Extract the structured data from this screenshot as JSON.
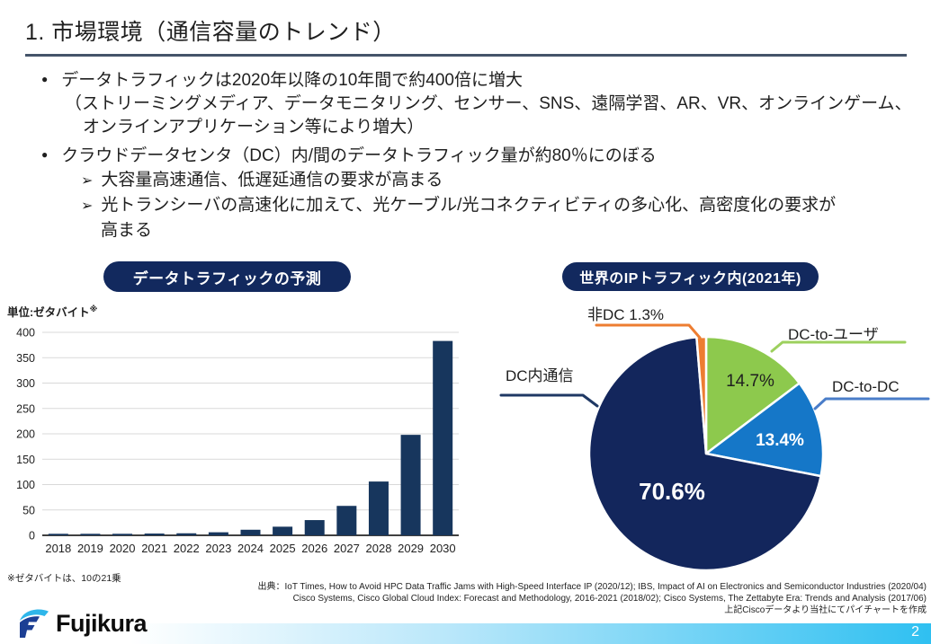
{
  "slide": {
    "title": "1. 市場環境（通信容量のトレンド）",
    "page_number": "2"
  },
  "bullets": {
    "marker_dot": "●",
    "marker_arrow": "➢",
    "rows": [
      {
        "text": "データトラフィックは2020年以降の10年間で約400倍に増大"
      },
      {
        "text": "（ストリーミングメディア、データモニタリング、センサー、SNS、遠隔学習、AR、VR、オンラインゲーム、"
      },
      {
        "text": "オンラインアプリケーション等により増大）"
      },
      {
        "text": "クラウドデータセンタ（DC）内/間のデータトラフィック量が約80％にのぼる"
      },
      {
        "text": "大容量高速通信、低遅延通信の要求が高まる"
      },
      {
        "text": "光トランシーバの高速化に加えて、光ケーブル/光コネクティビティの多心化、高密度化の要求が"
      },
      {
        "text": "高まる"
      }
    ]
  },
  "chart_data": [
    {
      "type": "bar",
      "title": "データトラフィックの予測",
      "unit_label": "単位:ゼタバイト",
      "unit_mark": "※",
      "categories": [
        "2018",
        "2019",
        "2020",
        "2021",
        "2022",
        "2023",
        "2024",
        "2025",
        "2026",
        "2027",
        "2028",
        "2029",
        "2030"
      ],
      "values": [
        3,
        3,
        3,
        3.5,
        4,
        6,
        11,
        17,
        30,
        58,
        106,
        198,
        383
      ],
      "ylabel": "ゼタバイト",
      "ylim": [
        0,
        400
      ],
      "ytick_step": 50,
      "grid": true,
      "bar_color": "#17365d",
      "footnote": "※ゼタバイトは、10の21乗"
    },
    {
      "type": "pie",
      "title": "世界のIPトラフィック内(2021年)",
      "start_angle_deg": 0,
      "direction": "clockwise",
      "slices": [
        {
          "name": "DC-to-ユーザ",
          "value": 14.7,
          "color": "#8dc94d",
          "callout_color": "#9dd05e",
          "pct_label": "14.7%",
          "callout_label": "DC-to-ユーザ"
        },
        {
          "name": "DC-to-DC",
          "value": 13.4,
          "color": "#1577c8",
          "callout_color": "#4a7dc9",
          "pct_label": "13.4%",
          "callout_label": "DC-to-DC"
        },
        {
          "name": "DC内通信",
          "value": 70.6,
          "color": "#13265c",
          "callout_color": "#1f3864",
          "pct_label": "70.6%",
          "callout_label": "DC内通信"
        },
        {
          "name": "非DC",
          "value": 1.3,
          "color": "#ed7d31",
          "callout_color": "#ed7d31",
          "pct_label": "",
          "callout_label": "非DC 1.3%"
        }
      ]
    }
  ],
  "sources": {
    "line1": "出典：IoT Times, How to Avoid HPC Data Traffic Jams with High-Speed Interface IP (2020/12); IBS, Impact of AI on Electronics and Semiconductor Industries (2020/04)",
    "line2": "Cisco Systems, Cisco Global Cloud Index: Forecast and Methodology, 2016-2021 (2018/02); Cisco Systems, The Zettabyte Era: Trends and Analysis (2017/06)",
    "line3": "上記Ciscoデータより当社にてパイチャートを作成"
  },
  "logo": {
    "text": "Fujikura"
  },
  "colors": {
    "divider": "#44546a",
    "pill_navy": "#12295e",
    "bar_navy": "#17365d",
    "footer_cyan": "#2fc0f1"
  }
}
